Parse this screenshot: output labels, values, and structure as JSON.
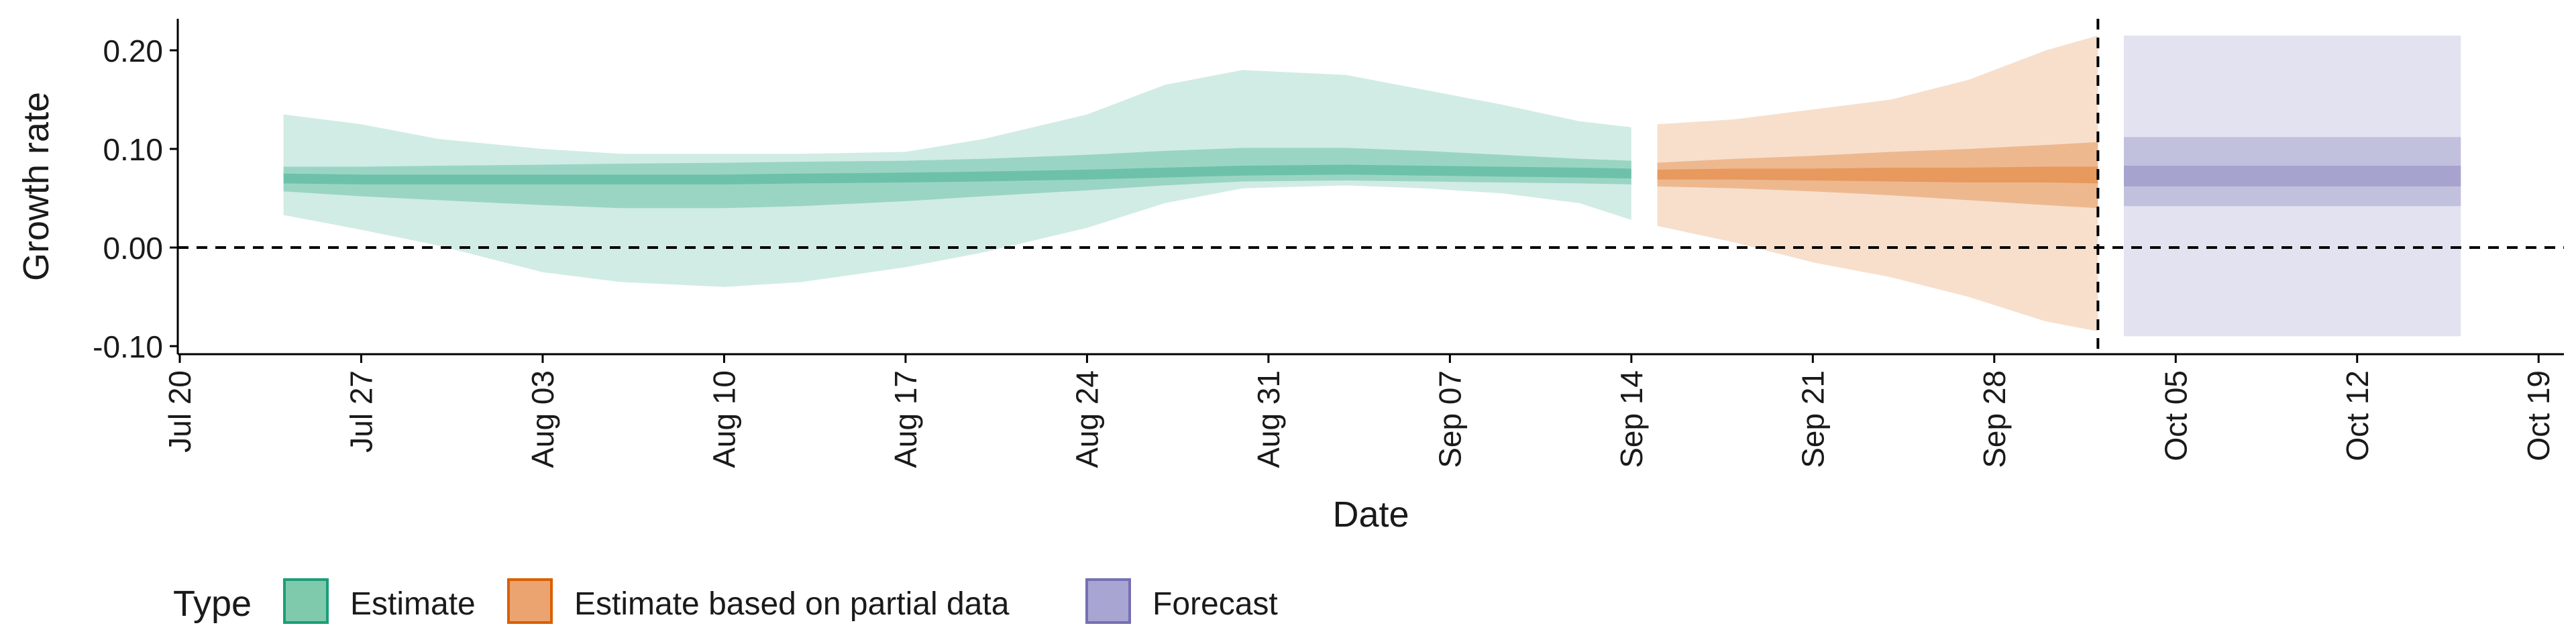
{
  "chart_data": {
    "type": "area",
    "xlabel": "Date",
    "ylabel": "Growth rate",
    "x_ticks": [
      "Jul 20",
      "Jul 27",
      "Aug 03",
      "Aug 10",
      "Aug 17",
      "Aug 24",
      "Aug 31",
      "Sep 07",
      "Sep 14",
      "Sep 21",
      "Sep 28",
      "Oct 05",
      "Oct 12",
      "Oct 19"
    ],
    "y_ticks": [
      "-0.10",
      "0.00",
      "0.10",
      "0.20"
    ],
    "ylim": [
      -0.105,
      0.235
    ],
    "xlim": [
      "2020-07-20",
      "2020-10-21"
    ],
    "reference_lines": {
      "horizontal_y": 0.0,
      "vertical_date": "2020-10-02"
    },
    "legend": {
      "title": "Type",
      "position": "bottom-left",
      "entries": [
        {
          "label": "Estimate",
          "color": "#7fc9ad",
          "border": "#1b9e77"
        },
        {
          "label": "Estimate based on partial data",
          "color": "#eba46f",
          "border": "#d95f02"
        },
        {
          "label": "Forecast",
          "color": "#a9a5d2",
          "border": "#7570b3"
        }
      ]
    },
    "series": [
      {
        "name": "Estimate",
        "color": "#1b9e77",
        "x": [
          "2020-07-24",
          "2020-07-27",
          "2020-07-30",
          "2020-08-03",
          "2020-08-06",
          "2020-08-10",
          "2020-08-13",
          "2020-08-17",
          "2020-08-20",
          "2020-08-24",
          "2020-08-27",
          "2020-08-30",
          "2020-09-03",
          "2020-09-06",
          "2020-09-09",
          "2020-09-12",
          "2020-09-14"
        ],
        "median": [
          0.07,
          0.069,
          0.069,
          0.069,
          0.069,
          0.069,
          0.07,
          0.071,
          0.072,
          0.074,
          0.076,
          0.078,
          0.079,
          0.078,
          0.077,
          0.076,
          0.075
        ],
        "lower_90": [
          0.033,
          0.018,
          0.002,
          -0.025,
          -0.035,
          -0.04,
          -0.035,
          -0.02,
          -0.005,
          0.02,
          0.045,
          0.06,
          0.063,
          0.06,
          0.055,
          0.045,
          0.028
        ],
        "upper_90": [
          0.135,
          0.125,
          0.11,
          0.1,
          0.095,
          0.095,
          0.095,
          0.097,
          0.11,
          0.135,
          0.165,
          0.18,
          0.175,
          0.16,
          0.145,
          0.128,
          0.122
        ],
        "lower_50": [
          0.057,
          0.052,
          0.048,
          0.043,
          0.04,
          0.04,
          0.042,
          0.047,
          0.052,
          0.058,
          0.063,
          0.067,
          0.068,
          0.067,
          0.066,
          0.065,
          0.064
        ],
        "upper_50": [
          0.082,
          0.082,
          0.083,
          0.084,
          0.085,
          0.086,
          0.087,
          0.088,
          0.09,
          0.094,
          0.098,
          0.101,
          0.101,
          0.098,
          0.094,
          0.09,
          0.088
        ],
        "lower_20": [
          0.065,
          0.064,
          0.064,
          0.064,
          0.064,
          0.064,
          0.065,
          0.066,
          0.067,
          0.069,
          0.071,
          0.073,
          0.074,
          0.073,
          0.072,
          0.071,
          0.07
        ],
        "upper_20": [
          0.075,
          0.074,
          0.074,
          0.074,
          0.074,
          0.074,
          0.075,
          0.076,
          0.077,
          0.079,
          0.081,
          0.083,
          0.084,
          0.083,
          0.082,
          0.081,
          0.08
        ]
      },
      {
        "name": "Estimate based on partial data",
        "color": "#d95f02",
        "x": [
          "2020-09-15",
          "2020-09-18",
          "2020-09-21",
          "2020-09-24",
          "2020-09-27",
          "2020-09-30",
          "2020-10-02"
        ],
        "median": [
          0.074,
          0.075,
          0.074,
          0.074,
          0.073,
          0.073,
          0.073
        ],
        "lower_90": [
          0.022,
          0.005,
          -0.015,
          -0.03,
          -0.05,
          -0.075,
          -0.085
        ],
        "upper_90": [
          0.125,
          0.13,
          0.14,
          0.15,
          0.17,
          0.2,
          0.215
        ],
        "lower_50": [
          0.062,
          0.06,
          0.057,
          0.053,
          0.048,
          0.043,
          0.04
        ],
        "upper_50": [
          0.086,
          0.09,
          0.093,
          0.097,
          0.1,
          0.104,
          0.107
        ],
        "lower_20": [
          0.069,
          0.069,
          0.068,
          0.067,
          0.066,
          0.066,
          0.065
        ],
        "upper_20": [
          0.079,
          0.08,
          0.08,
          0.081,
          0.081,
          0.082,
          0.082
        ]
      },
      {
        "name": "Forecast",
        "color": "#7570b3",
        "x": [
          "2020-10-03",
          "2020-10-16"
        ],
        "median": [
          0.073,
          0.073
        ],
        "lower_90": [
          -0.09,
          -0.09
        ],
        "upper_90": [
          0.215,
          0.215
        ],
        "lower_50": [
          0.042,
          0.042
        ],
        "upper_50": [
          0.112,
          0.112
        ],
        "lower_20": [
          0.062,
          0.062
        ],
        "upper_20": [
          0.083,
          0.083
        ]
      }
    ]
  }
}
